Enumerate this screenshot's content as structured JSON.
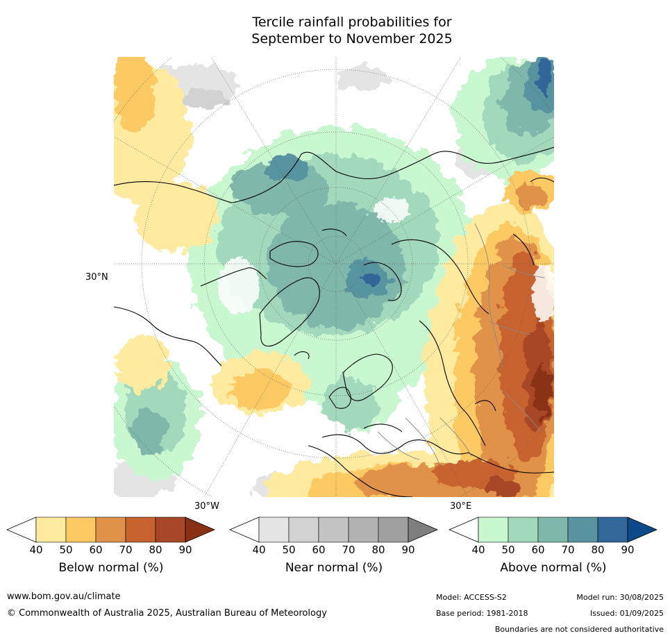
{
  "title": {
    "line1": "Tercile rainfall probabilities for",
    "line2": "September to November 2025"
  },
  "map": {
    "projection": "north polar stereographic",
    "labels": {
      "lat_left": "30°N",
      "lon_left": "30°W",
      "lon_right": "30°E"
    },
    "colors": {
      "below": [
        "#ffeba0",
        "#fdc963",
        "#e0924a",
        "#c8622f",
        "#a84728",
        "#8a3014"
      ],
      "near": [
        "#e4e4e4",
        "#d2d2d2",
        "#c4c4c4",
        "#b2b2b2",
        "#a0a0a0",
        "#7f7f7f"
      ],
      "above": [
        "#c8f7d0",
        "#a2d9bd",
        "#7fb8ab",
        "#5993a0",
        "#336699",
        "#0d4a8a"
      ]
    }
  },
  "colorbars": [
    {
      "title": "Below normal (%)",
      "ticks": [
        "40",
        "50",
        "60",
        "70",
        "80",
        "90"
      ]
    },
    {
      "title": "Near normal (%)",
      "ticks": [
        "40",
        "50",
        "60",
        "70",
        "80",
        "90"
      ]
    },
    {
      "title": "Above normal (%)",
      "ticks": [
        "40",
        "50",
        "60",
        "70",
        "80",
        "90"
      ]
    }
  ],
  "footer": {
    "website": "www.bom.gov.au/climate",
    "copyright": "© Commonwealth of Australia 2025, Australian Bureau of Meteorology",
    "model": "Model: ACCESS-S2",
    "base_period": "Base period: 1981-2018",
    "model_run": "Model run: 30/08/2025",
    "issued": "Issued: 01/09/2025",
    "disclaimer": "Boundaries are not considered authoritative"
  }
}
